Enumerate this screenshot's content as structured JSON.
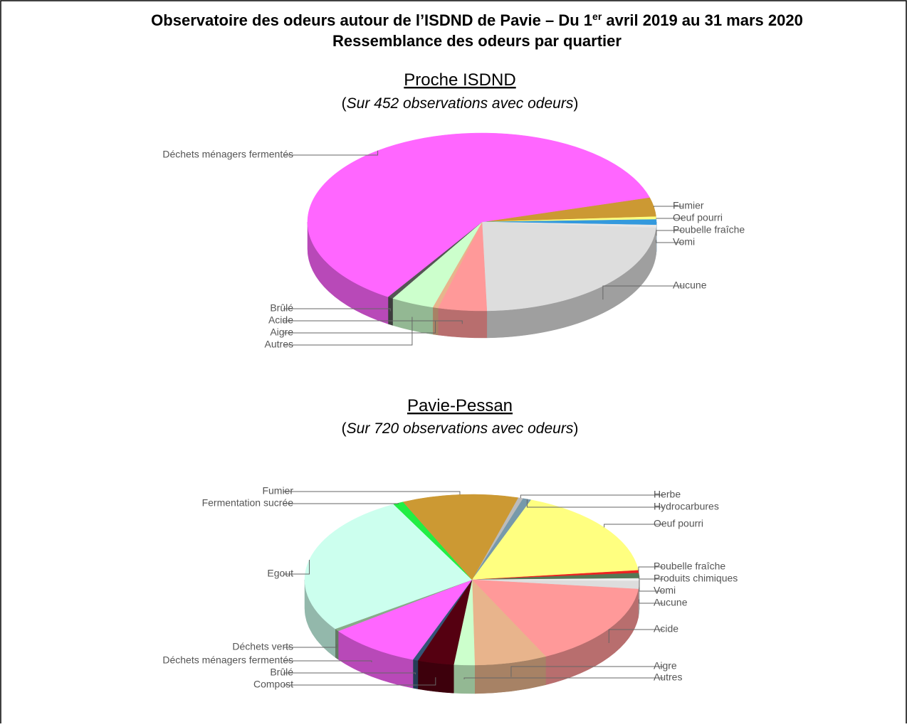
{
  "header": {
    "title": [
      "Observatoire des odeurs autour de l’ISDND de Pavie – Du 1",
      "er",
      " avril 2019 au 31 mars 2020"
    ],
    "subtitle": "Ressemblance des odeurs par quartier"
  },
  "chart_data": [
    {
      "type": "pie3d",
      "title": "Proche ISDND",
      "subtitle": [
        "(",
        "Sur 452 observations avec odeurs",
        ")"
      ],
      "startangle": -16,
      "labels": [
        "Fumier",
        "Oeuf pourri",
        "Poubelle fraîche",
        "Vomi",
        "Aucune",
        "Acide",
        "Aigre",
        "Autres",
        "Brûlé",
        "Déchets ménagers fermentés"
      ],
      "values": [
        3.5,
        0.5,
        1,
        0.5,
        23.5,
        4.5,
        0.5,
        4,
        0.5,
        61.5
      ],
      "colors": [
        "#cc9933",
        "#ffff80",
        "#3399dd",
        "#e6e6e6",
        "#dddddd",
        "#ff9999",
        "#e8b48c",
        "#ccffcc",
        "#555555",
        "#ff66ff"
      ]
    },
    {
      "type": "pie3d",
      "title": "Pavie-Pessan",
      "subtitle": [
        "(",
        "Sur 720 observations avec odeurs",
        ")"
      ],
      "startangle": -74,
      "labels": [
        "Herbe",
        "Hydrocarbures",
        "Oeuf pourri",
        "Poubelle fraîche",
        "Produits chimiques",
        "Vomi",
        "Aucune",
        "Acide",
        "Aigre",
        "Autres",
        "Compost",
        "Brûlé",
        "Déchets ménagers fermentés",
        "Déchets verts",
        "Egout",
        "Fermentation sucrée",
        "Fumier"
      ],
      "values": [
        0.5,
        0.8,
        17.5,
        0.5,
        1,
        0.5,
        1.5,
        16,
        7,
        2,
        3.5,
        0.5,
        9,
        0.5,
        27,
        1,
        11.2
      ],
      "colors": [
        "#bbbbbb",
        "#7799aa",
        "#ffff80",
        "#ee2222",
        "#557755",
        "#eeeeee",
        "#dddddd",
        "#ff9999",
        "#e8b48c",
        "#ccffcc",
        "#550011",
        "#335577",
        "#ff66ff",
        "#88aa88",
        "#ccffee",
        "#22ee44",
        "#cc9933"
      ]
    }
  ]
}
